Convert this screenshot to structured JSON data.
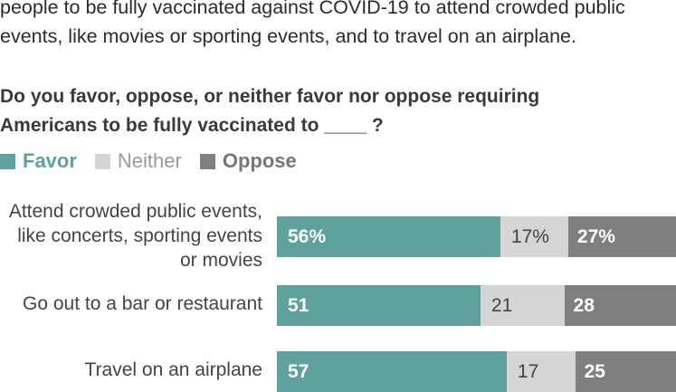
{
  "intro": {
    "line1": "people to be fully vaccinated against COVID-19 to attend crowded public",
    "line2": "events, like movies or sporting events, and to travel on an airplane."
  },
  "question": {
    "line1": "Do you favor, oppose, or neither favor nor oppose requiring",
    "line2": "Americans to be fully vaccinated to ____ ?"
  },
  "chart_data": {
    "type": "bar",
    "orientation": "horizontal",
    "stacked": true,
    "legend_position": "top-left",
    "categories": [
      [
        "Attend crowded public events,",
        "like concerts, sporting events",
        "or movies"
      ],
      [
        "Go out to a bar or restaurant"
      ],
      [
        "Travel on an airplane"
      ]
    ],
    "series": [
      {
        "name": "Favor",
        "color": "#5fa19c",
        "values": [
          56,
          51,
          57
        ],
        "labels": [
          "56%",
          "51",
          "57"
        ]
      },
      {
        "name": "Neither",
        "color": "#d5d5d5",
        "values": [
          17,
          21,
          17
        ],
        "labels": [
          "17%",
          "21",
          "17"
        ]
      },
      {
        "name": "Oppose",
        "color": "#7f7f80",
        "values": [
          27,
          28,
          25
        ],
        "labels": [
          "27%",
          "28",
          "25"
        ]
      }
    ]
  }
}
